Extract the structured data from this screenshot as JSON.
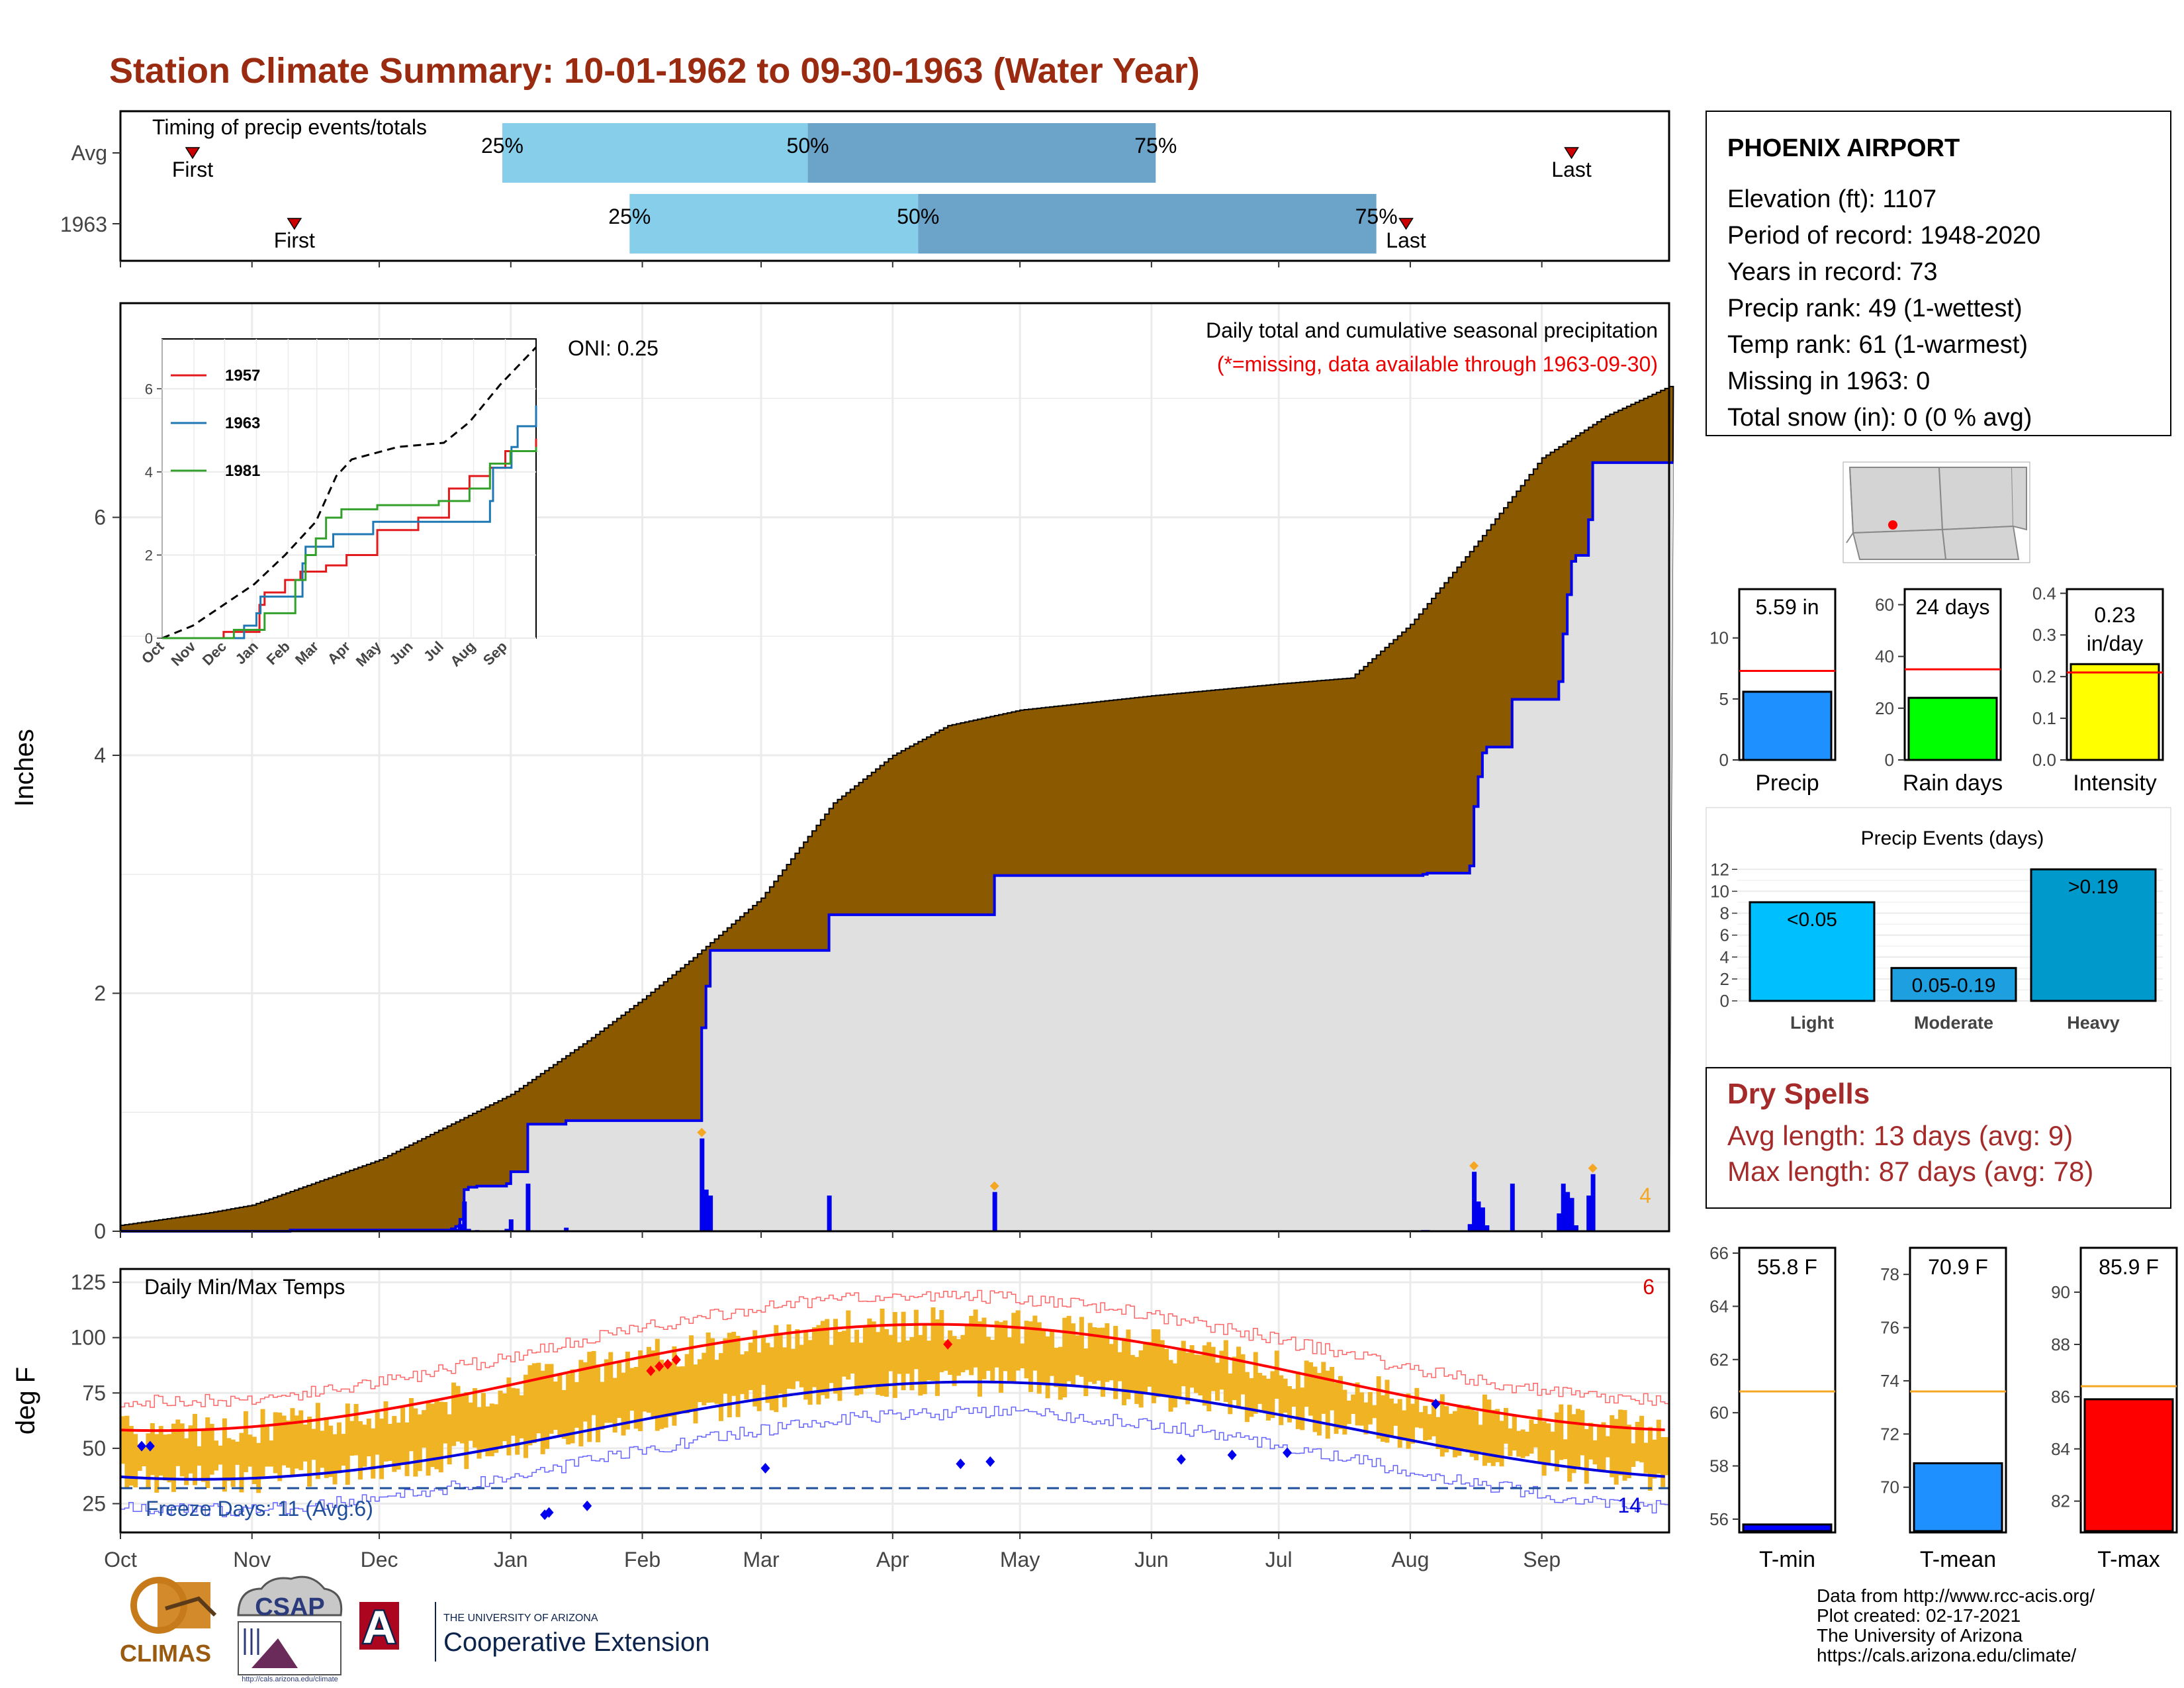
{
  "page": {
    "title": "Station Climate Summary: 10-01-1962 to 09-30-1963 (Water Year)"
  },
  "timing": {
    "title": "Timing of precip events/totals",
    "rows": [
      {
        "label": "Avg",
        "first": "First",
        "last": "Last",
        "p25": "25%",
        "p50": "50%",
        "p75": "75%",
        "first_day": 17,
        "p25_day": 90,
        "p50_day": 162,
        "p75_day": 244,
        "last_day": 342
      },
      {
        "label": "1963",
        "first": "First",
        "last": "Last",
        "p25": "25%",
        "p50": "50%",
        "p75": "75%",
        "first_day": 41,
        "p25_day": 120,
        "p50_day": 188,
        "p75_day": 296,
        "last_day": 303
      }
    ],
    "colors": {
      "light": "#87ceeb",
      "dark": "#6ba3c9",
      "marker": "#cc0000"
    }
  },
  "station": {
    "name": "PHOENIX AIRPORT",
    "lines": [
      "Elevation (ft): 1107",
      "Period of record: 1948-2020",
      "Years in record: 73",
      "Precip rank: 49 (1-wettest)",
      "Temp rank: 61 (1-warmest)",
      "Missing in 1963: 0",
      "Total snow (in): 0 (0 % avg)"
    ]
  },
  "main_precip": {
    "ylabel": "Inches",
    "title": "Daily total and cumulative seasonal precipitation",
    "note": "(*=missing, data available through 1963-09-30)",
    "oni": "ONI: 0.25",
    "corner_count": "4",
    "yticks": [
      "0",
      "2",
      "4",
      "6"
    ],
    "colors": {
      "avg_fill": "#8b5a00",
      "obs_fill": "#e0e0e0",
      "obs_line": "#0000ee",
      "marker": "#f5a623"
    }
  },
  "inset": {
    "yticks": [
      "0",
      "2",
      "4",
      "6"
    ],
    "xticks": [
      "Oct",
      "Nov",
      "Dec",
      "Jan",
      "Feb",
      "Mar",
      "Apr",
      "May",
      "Jun",
      "Jul",
      "Aug",
      "Sep"
    ],
    "legend": [
      {
        "name": "1957",
        "color": "#e31a1c"
      },
      {
        "name": "1963",
        "color": "#1f78b4"
      },
      {
        "name": "1981",
        "color": "#33a02c"
      }
    ]
  },
  "temp": {
    "ylabel": "deg F",
    "title": "Daily Min/Max Temps",
    "freeze": "Freeze Days: 11 (Avg:6)",
    "count_top": "6",
    "count_bottom": "14",
    "yticks": [
      "25",
      "50",
      "75",
      "100",
      "125"
    ],
    "months": [
      "Oct",
      "Nov",
      "Dec",
      "Jan",
      "Feb",
      "Mar",
      "Apr",
      "May",
      "Jun",
      "Jul",
      "Aug",
      "Sep"
    ],
    "colors": {
      "range": "#f0b323",
      "max": "#ff0000",
      "min": "#0000dd",
      "freeze": "#1f4e9a"
    }
  },
  "mini_bars": [
    {
      "label": "Precip",
      "value_text": "5.59 in",
      "value": 5.59,
      "avg": 7.3,
      "ymax": 14,
      "yticks": [
        "0",
        "5",
        "10"
      ],
      "tick_vals": [
        0,
        5,
        10
      ],
      "color": "#1e90ff"
    },
    {
      "label": "Rain days",
      "value_text": "24 days",
      "value": 24,
      "avg": 35,
      "ymax": 66,
      "yticks": [
        "0",
        "20",
        "40",
        "60"
      ],
      "tick_vals": [
        0,
        20,
        40,
        60
      ],
      "color": "#00ff00"
    },
    {
      "label": "Intensity",
      "value_text_1": "0.23",
      "value_text_2": "in/day",
      "value": 0.23,
      "avg": 0.21,
      "ymax": 0.41,
      "yticks": [
        "0.0",
        "0.1",
        "0.2",
        "0.3",
        "0.4"
      ],
      "tick_vals": [
        0,
        0.1,
        0.2,
        0.3,
        0.4
      ],
      "color": "#ffff00"
    }
  ],
  "events": {
    "title": "Precip Events (days)",
    "yticks": [
      "0",
      "2",
      "4",
      "6",
      "8",
      "10",
      "12"
    ],
    "bars": [
      {
        "category": "Light",
        "label": "<0.05",
        "value": 9,
        "color": "#00bfff"
      },
      {
        "category": "Moderate",
        "label": "0.05-0.19",
        "value": 3,
        "color": "#1ea0e0"
      },
      {
        "category": "Heavy",
        "label": ">0.19",
        "value": 12,
        "color": "#0099cc"
      }
    ]
  },
  "dry_spells": {
    "title": "Dry Spells",
    "avg": "Avg length: 13 days (avg: 9)",
    "max": "Max length: 87 days (avg: 78)"
  },
  "temp_bars": [
    {
      "label": "T-min",
      "value_text": "55.8 F",
      "value": 55.8,
      "avg": 60.8,
      "ymin": 55.5,
      "ymax": 66.2,
      "yticks": [
        "56",
        "58",
        "60",
        "62",
        "64",
        "66"
      ],
      "tick_vals": [
        56,
        58,
        60,
        62,
        64,
        66
      ],
      "color": "#0000ff"
    },
    {
      "label": "T-mean",
      "value_text": "70.9 F",
      "value": 70.9,
      "avg": 73.6,
      "ymin": 68.3,
      "ymax": 79.0,
      "yticks": [
        "70",
        "72",
        "74",
        "76",
        "78"
      ],
      "tick_vals": [
        70,
        72,
        74,
        76,
        78
      ],
      "color": "#1e90ff"
    },
    {
      "label": "T-max",
      "value_text": "85.9 F",
      "value": 85.9,
      "avg": 86.4,
      "ymin": 80.8,
      "ymax": 91.7,
      "yticks": [
        "82",
        "84",
        "86",
        "88",
        "90"
      ],
      "tick_vals": [
        82,
        84,
        86,
        88,
        90
      ],
      "color": "#ff0000"
    }
  ],
  "footer": {
    "credits": [
      "Data from http://www.rcc-acis.org/",
      "Plot created: 02-17-2021",
      "The University of Arizona",
      "https://cals.arizona.edu/climate/"
    ],
    "logo_climas": "CLIMAS",
    "logo_csap": "CSAP",
    "logo_csap_url": "http://cals.arizona.edu/climate",
    "ua_letter": "A",
    "ua_small": "THE UNIVERSITY OF ARIZONA",
    "ua_big": "Cooperative Extension"
  }
}
